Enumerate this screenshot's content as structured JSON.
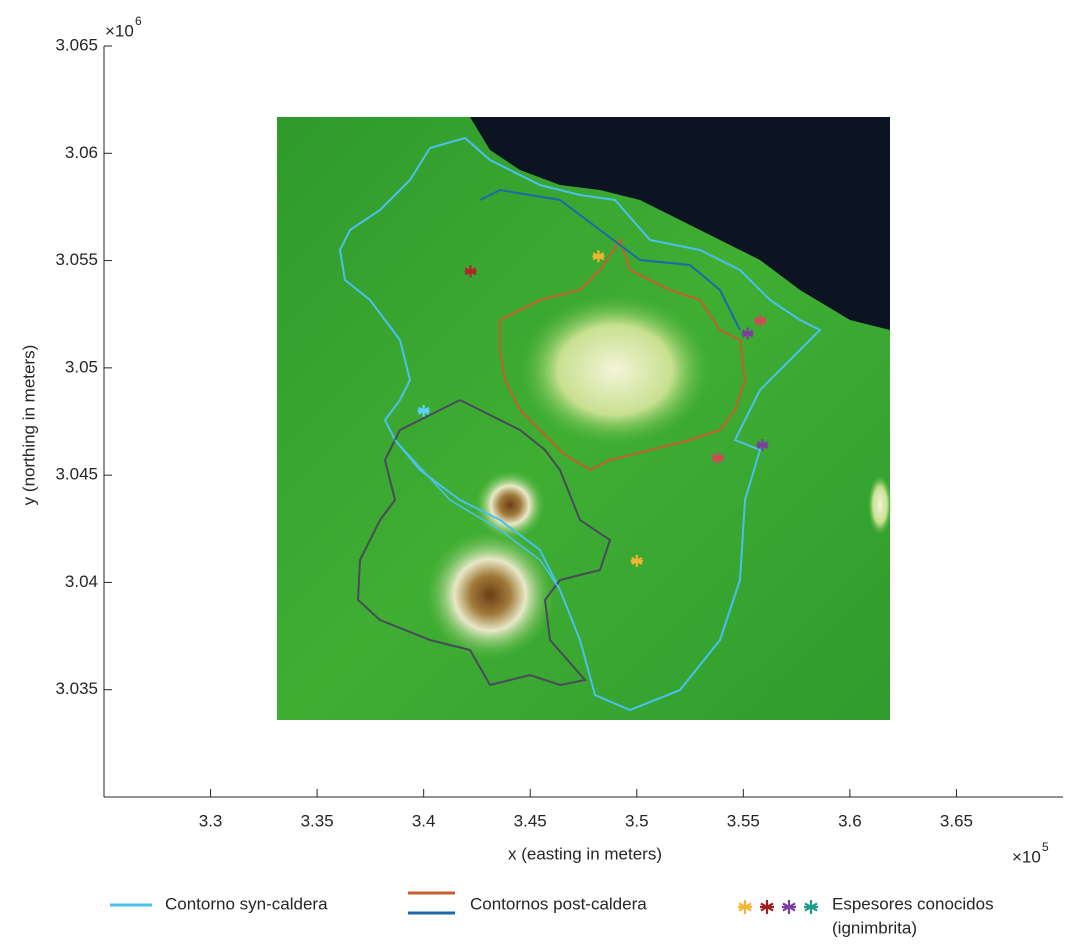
{
  "chart_data": {
    "type": "scatter",
    "xlabel": "x (easting in meters)",
    "ylabel": "y (northing in meters)",
    "x_multiplier": {
      "base": "×10",
      "exponent": "5"
    },
    "y_multiplier": {
      "base": "×10",
      "exponent": "6"
    },
    "xlim": [
      3.25,
      3.7
    ],
    "ylim": [
      3.03,
      3.065
    ],
    "xticks": [
      3.3,
      3.35,
      3.4,
      3.45,
      3.5,
      3.55,
      3.6,
      3.65
    ],
    "yticks": [
      3.035,
      3.04,
      3.045,
      3.05,
      3.055,
      3.06,
      3.065
    ],
    "points": {
      "x": [
        3.4,
        3.5,
        3.482,
        3.422,
        3.538,
        3.558,
        3.559,
        3.552
      ],
      "y": [
        3.048,
        3.041,
        3.0552,
        3.0545,
        3.0458,
        3.0522,
        3.0464,
        3.0516
      ],
      "colors": [
        "#5fd3ff",
        "#f2b632",
        "#f2b632",
        "#b0242a",
        "#d8455a",
        "#d8455a",
        "#7b3fa0",
        "#7b3fa0"
      ]
    },
    "legend": [
      {
        "label": [
          "Contorno syn-caldera"
        ],
        "colors": [
          "#4cc0ec"
        ]
      },
      {
        "label": [
          "Contornos post-caldera"
        ],
        "colors": [
          "#c4602a",
          "#1f68ad"
        ]
      },
      {
        "label": [
          "Espesores conocidos",
          "(ignimbrita)"
        ],
        "colors": [
          "#f2b632",
          "#a01f24",
          "#7b3fa0",
          "#1a9b8c"
        ]
      }
    ]
  }
}
